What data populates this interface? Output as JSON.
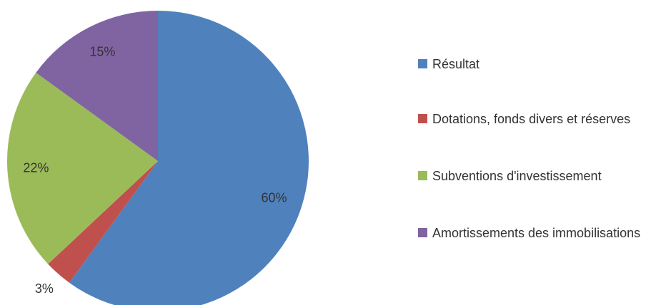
{
  "chart_data": {
    "type": "pie",
    "categories": [
      "Résultat",
      "Dotations, fonds divers et réserves",
      "Subventions d'investissement",
      "Amortissements des immobilisations"
    ],
    "values": [
      60,
      3,
      22,
      15
    ],
    "value_labels": [
      "60%",
      "3%",
      "22%",
      "15%"
    ],
    "colors": [
      "#4f81bd",
      "#c0504d",
      "#9bbb59",
      "#8064a2"
    ],
    "legend": "right"
  }
}
